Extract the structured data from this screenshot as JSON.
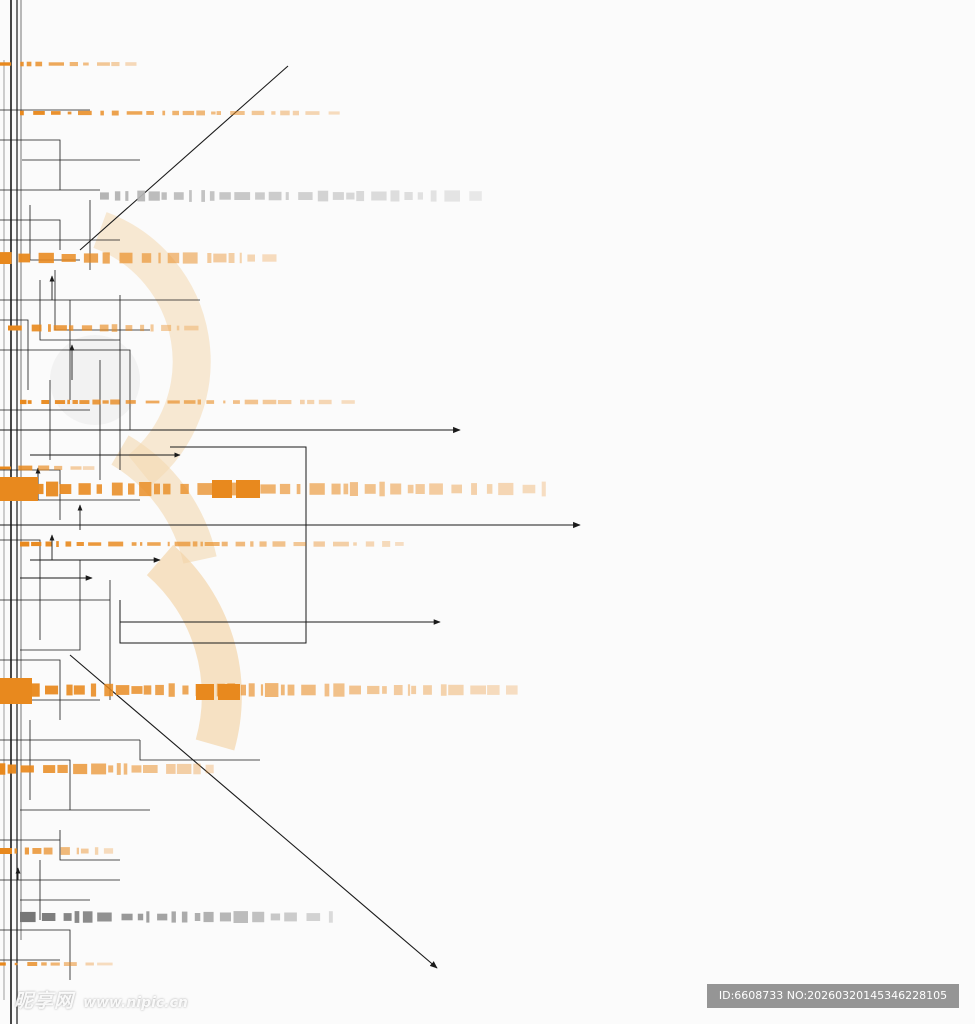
{
  "watermark": {
    "logo_text": "昵享网",
    "url": "www.nipic.cn",
    "id_text": "ID:6608733 NO:20260320145346228105"
  },
  "palette": {
    "background": "#fbfbfb",
    "accent": "#e8891e",
    "accent_light": "#f6d6a8",
    "line": "#1a1a1a",
    "gray_block": "#b5b5b5"
  }
}
